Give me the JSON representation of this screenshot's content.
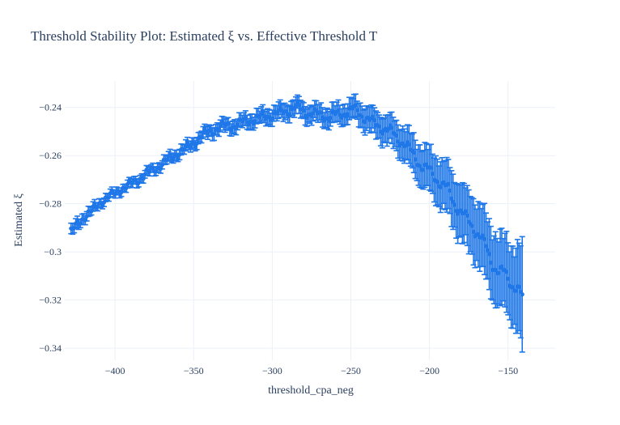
{
  "chart_data": {
    "type": "scatter",
    "title": "Threshold Stability Plot: Estimated ξ vs. Effective Threshold T",
    "xlabel": "threshold_cpa_neg",
    "ylabel": "Estimated ξ",
    "xlim": [
      -432,
      -120
    ],
    "ylim": [
      -0.345,
      -0.229
    ],
    "grid": true,
    "x_ticks": [
      -400,
      -350,
      -300,
      -250,
      -200,
      -150
    ],
    "x_tick_labels": [
      "−400",
      "−350",
      "−300",
      "−250",
      "−200",
      "−150"
    ],
    "y_ticks": [
      -0.24,
      -0.26,
      -0.28,
      -0.3,
      -0.32,
      -0.34
    ],
    "y_tick_labels": [
      "−0.24",
      "−0.26",
      "−0.28",
      "−0.3",
      "−0.32",
      "−0.34"
    ],
    "marker_color": "#1f77e8",
    "series": [
      {
        "x": [
          -428,
          -424,
          -420,
          -416,
          -412,
          -408,
          -404,
          -400,
          -396,
          -392,
          -388,
          -384,
          -380,
          -376,
          -372,
          -368,
          -364,
          -360,
          -356,
          -352,
          -348,
          -344,
          -340,
          -336,
          -332,
          -328,
          -324,
          -320,
          -316,
          -312,
          -308,
          -304,
          -300,
          -296,
          -292,
          -288,
          -284,
          -280,
          -276,
          -272,
          -268,
          -264,
          -260,
          -256,
          -252,
          -248,
          -244,
          -240,
          -236,
          -232,
          -228,
          -224,
          -220,
          -216,
          -212,
          -208,
          -204,
          -200,
          -196,
          -192,
          -188,
          -184,
          -180,
          -176,
          -172,
          -168,
          -164,
          -160,
          -156,
          -152,
          -148,
          -144,
          -141
        ],
        "y": [
          -0.2915,
          -0.2885,
          -0.286,
          -0.2835,
          -0.281,
          -0.279,
          -0.277,
          -0.2755,
          -0.274,
          -0.2725,
          -0.271,
          -0.2695,
          -0.2675,
          -0.266,
          -0.2645,
          -0.2625,
          -0.2605,
          -0.259,
          -0.2575,
          -0.2555,
          -0.2535,
          -0.2515,
          -0.25,
          -0.249,
          -0.248,
          -0.2475,
          -0.2475,
          -0.2465,
          -0.2455,
          -0.245,
          -0.2445,
          -0.2435,
          -0.243,
          -0.2425,
          -0.2415,
          -0.2405,
          -0.24,
          -0.2415,
          -0.2425,
          -0.243,
          -0.243,
          -0.244,
          -0.2435,
          -0.2425,
          -0.2415,
          -0.241,
          -0.2425,
          -0.2445,
          -0.2465,
          -0.2475,
          -0.249,
          -0.2505,
          -0.2525,
          -0.255,
          -0.2585,
          -0.2615,
          -0.265,
          -0.2665,
          -0.269,
          -0.272,
          -0.2745,
          -0.2795,
          -0.2835,
          -0.287,
          -0.2895,
          -0.2935,
          -0.2985,
          -0.3045,
          -0.3085,
          -0.309,
          -0.3125,
          -0.3155,
          -0.3195
        ],
        "error": [
          0.002,
          0.002,
          0.002,
          0.0018,
          0.0017,
          0.0016,
          0.0015,
          0.0015,
          0.0015,
          0.0015,
          0.0016,
          0.0016,
          0.0017,
          0.0017,
          0.0018,
          0.0018,
          0.0019,
          0.002,
          0.002,
          0.0021,
          0.0022,
          0.0022,
          0.0023,
          0.0024,
          0.0024,
          0.0025,
          0.0026,
          0.0026,
          0.0027,
          0.0028,
          0.0028,
          0.0029,
          0.003,
          0.003,
          0.0031,
          0.0032,
          0.0032,
          0.0033,
          0.0034,
          0.0035,
          0.0036,
          0.0037,
          0.0038,
          0.0039,
          0.004,
          0.0042,
          0.0045,
          0.0048,
          0.005,
          0.0052,
          0.0055,
          0.0058,
          0.006,
          0.0065,
          0.007,
          0.0075,
          0.008,
          0.0085,
          0.009,
          0.0095,
          0.01,
          0.0105,
          0.011,
          0.0115,
          0.012,
          0.0125,
          0.013,
          0.0135,
          0.014,
          0.0145,
          0.015,
          0.017,
          0.021
        ]
      }
    ]
  }
}
